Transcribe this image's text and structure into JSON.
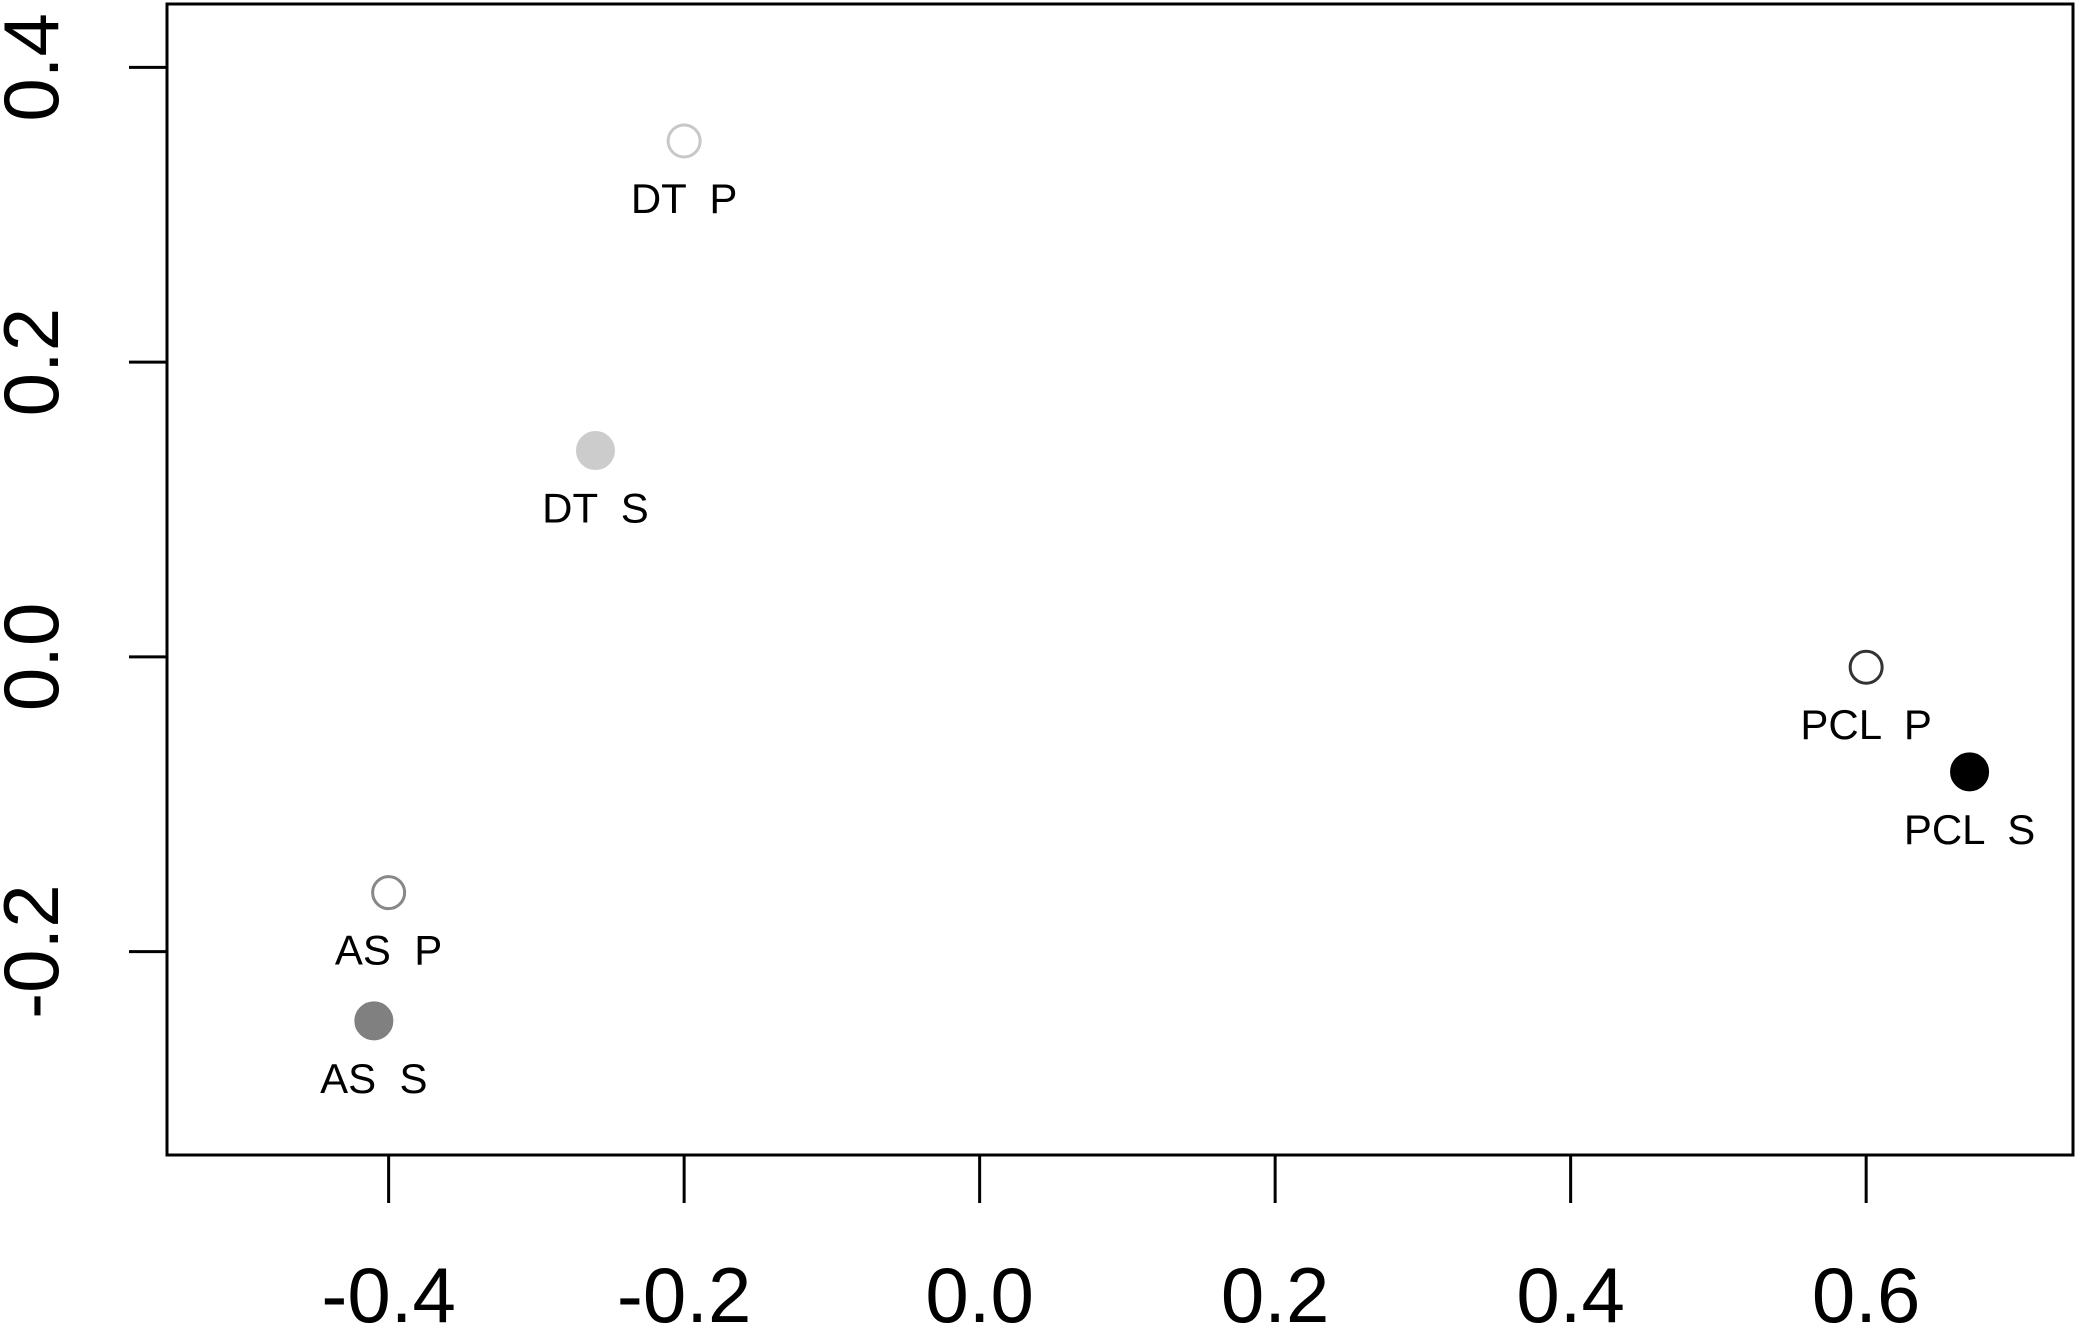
{
  "chart_data": {
    "type": "scatter",
    "title": "",
    "xlabel": "",
    "ylabel": "",
    "xlim": [
      -0.55,
      0.74
    ],
    "ylim": [
      -0.338,
      0.443
    ],
    "x_ticks": [
      -0.4,
      -0.2,
      0.0,
      0.2,
      0.4,
      0.6
    ],
    "x_tick_labels": [
      "-0.4",
      "-0.2",
      "0.0",
      "0.2",
      "0.4",
      "0.6"
    ],
    "y_ticks": [
      -0.2,
      0.0,
      0.2,
      0.4
    ],
    "y_tick_labels": [
      "-0.2",
      "0.0",
      "0.2",
      "0.4"
    ],
    "grid": false,
    "legend": "none",
    "points": [
      {
        "label": "DT  P",
        "x": -0.2,
        "y": 0.35,
        "filled": false,
        "color": "#c8c8c8"
      },
      {
        "label": "DT  S",
        "x": -0.26,
        "y": 0.14,
        "filled": true,
        "color": "#cccccc"
      },
      {
        "label": "AS  P",
        "x": -0.4,
        "y": -0.16,
        "filled": false,
        "color": "#888888"
      },
      {
        "label": "AS  S",
        "x": -0.41,
        "y": -0.247,
        "filled": true,
        "color": "#808080"
      },
      {
        "label": "PCL  P",
        "x": 0.6,
        "y": -0.007,
        "filled": false,
        "color": "#333333"
      },
      {
        "label": "PCL  S",
        "x": 0.67,
        "y": -0.078,
        "filled": true,
        "color": "#000000"
      }
    ]
  }
}
